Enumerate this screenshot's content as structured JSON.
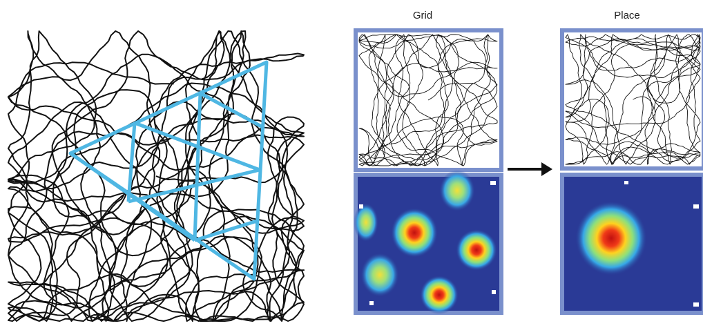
{
  "labels": {
    "grid": "Grid",
    "place": "Place"
  },
  "colors": {
    "trajectory": "#111111",
    "spikes": "#e8262a",
    "triangle": "#4fb7e3",
    "panel_frame": "#7a90cc",
    "heatmap_background": "#2a3a96",
    "arrow": "#111111"
  }
}
